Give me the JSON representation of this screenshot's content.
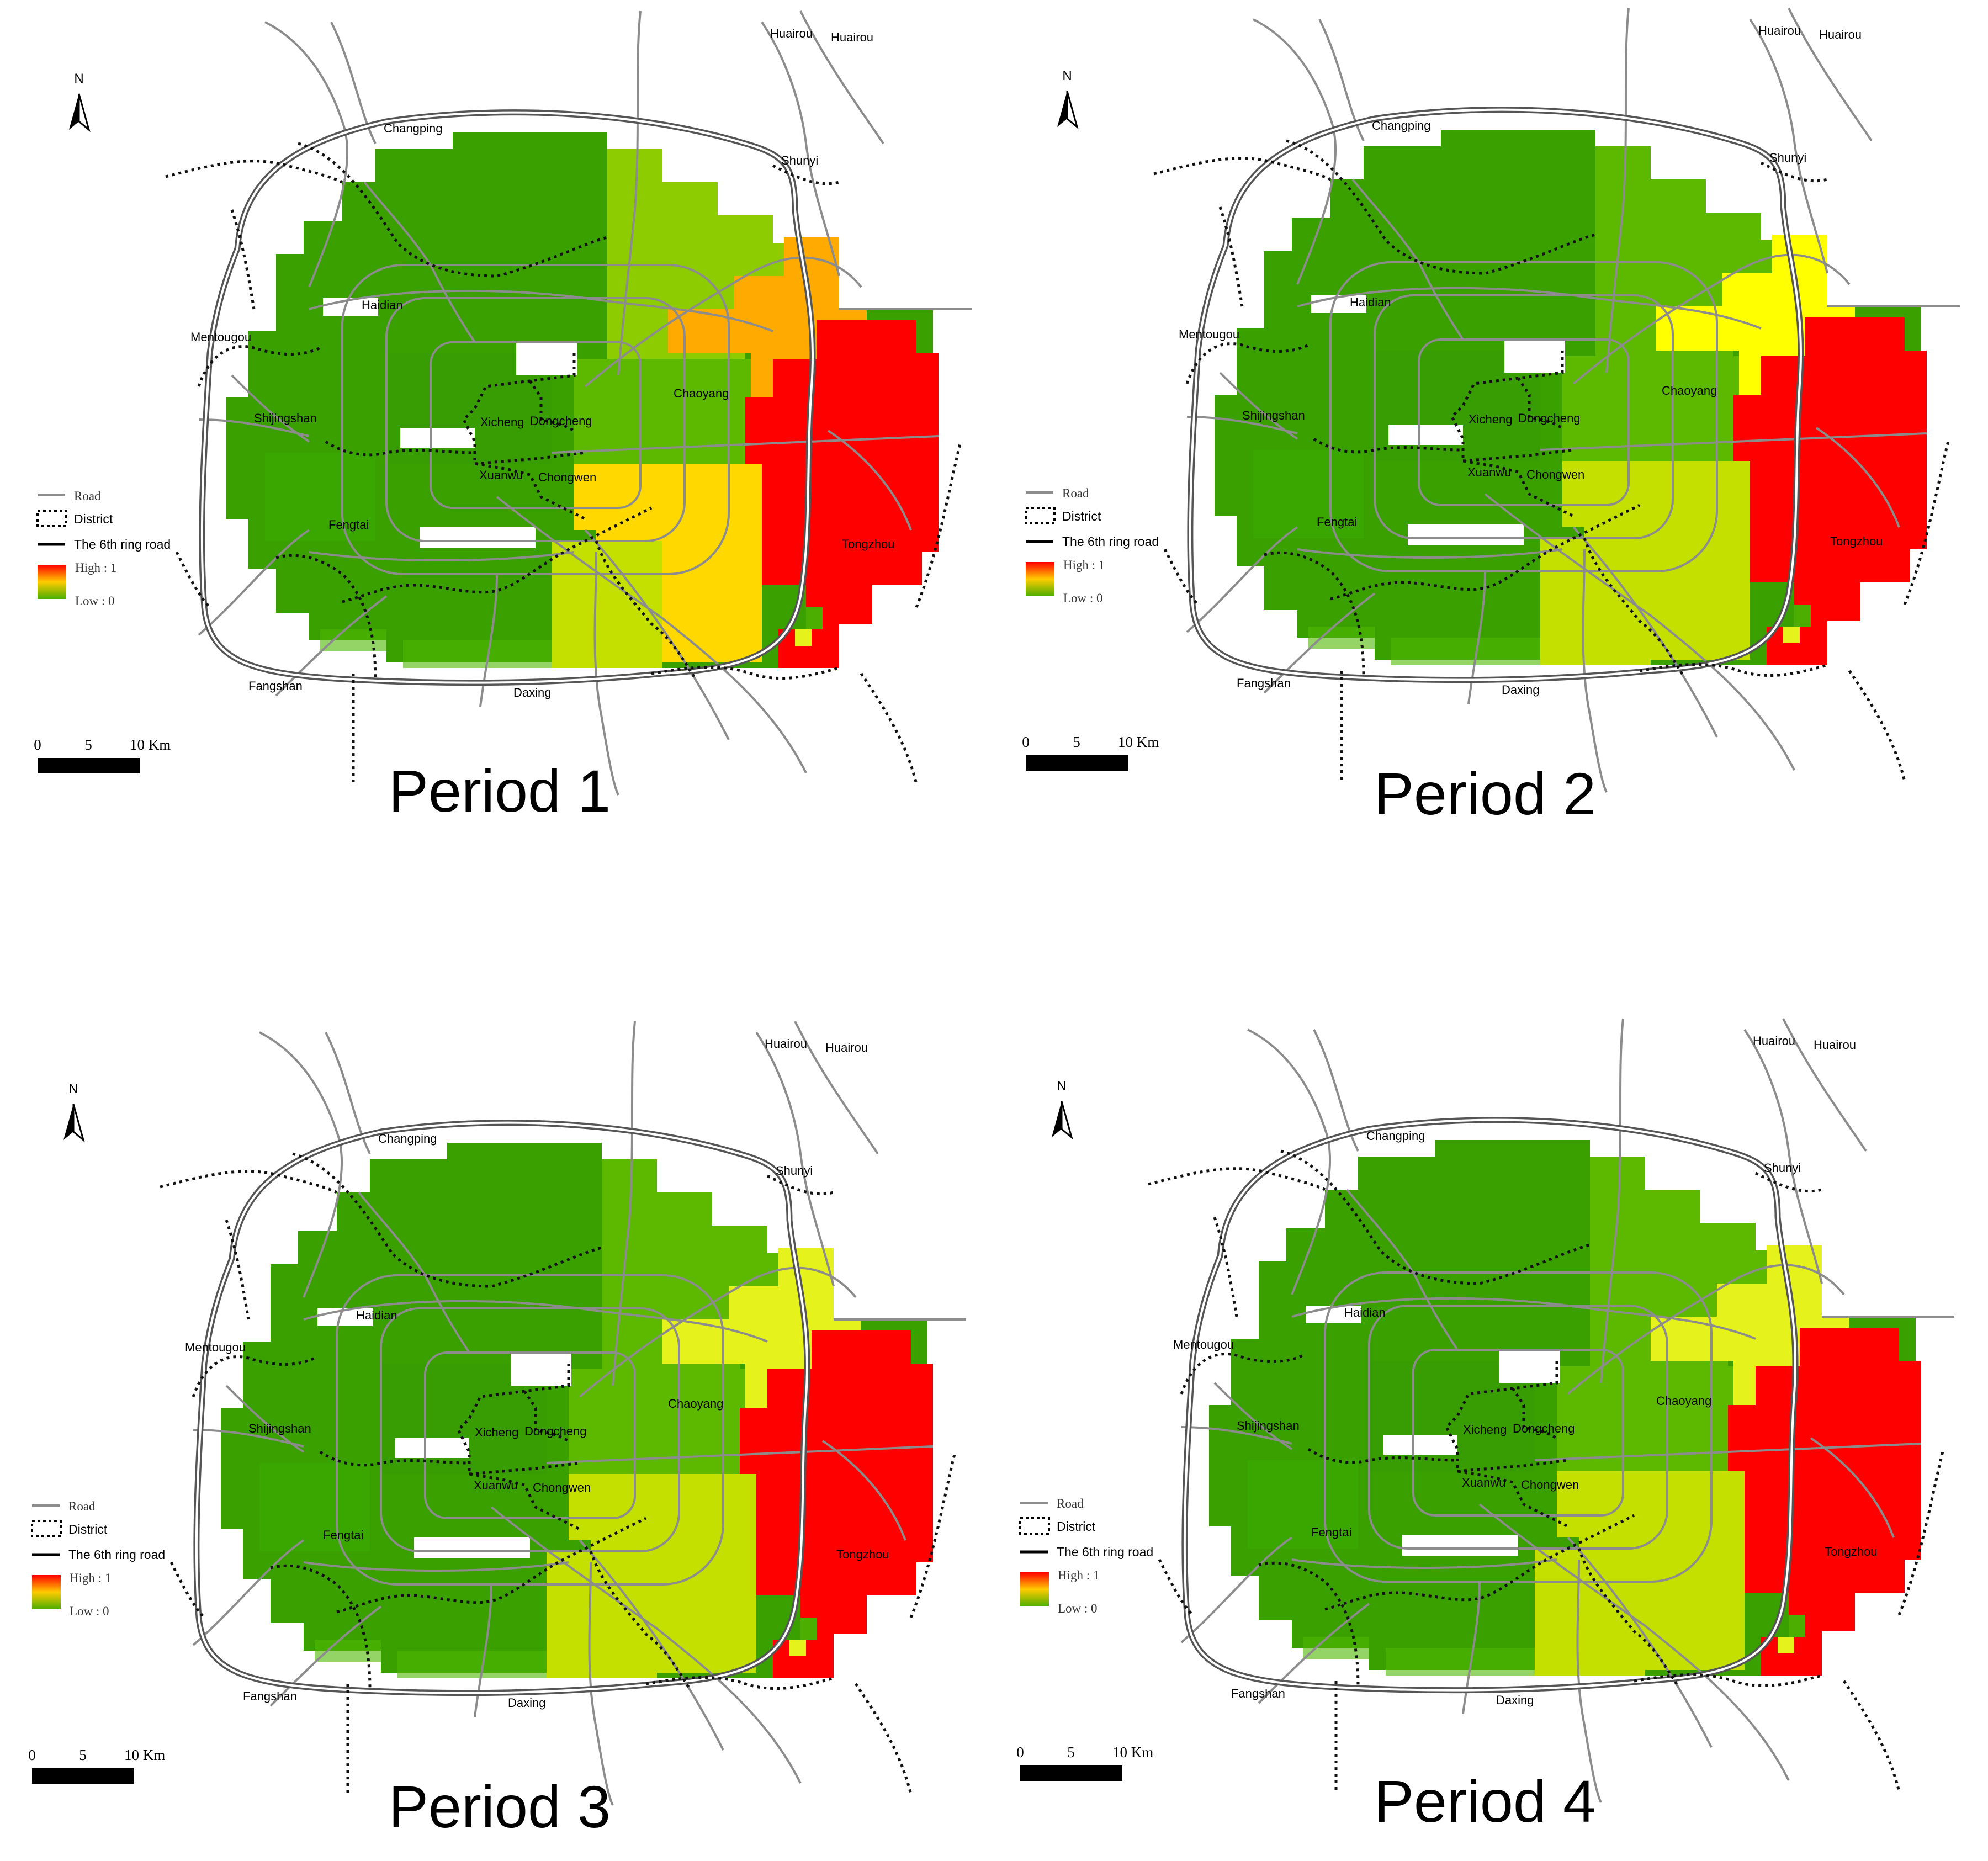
{
  "panels": [
    {
      "title": "Period 1",
      "hotspot": "orange",
      "southeast": "gold",
      "north_mid": "light",
      "labels": {
        "changping": "Changping",
        "shunyi": "Shunyi",
        "huairou_1": "Huairou",
        "huairou_2": "Huairou",
        "haidian": "Haidian",
        "mentougou": "Mentougou",
        "shijingshan": "Shijingshan",
        "xicheng": "Xicheng",
        "dongcheng": "Dongcheng",
        "chaoyang": "Chaoyang",
        "xuanwu": "Xuanwu",
        "chongwen": "Chongwen",
        "fengtai": "Fengtai",
        "tongzhou": "Tongzhou",
        "fangshan": "Fangshan",
        "daxing": "Daxing"
      },
      "legend": {
        "road": "Road",
        "district": "District",
        "ring": "The 6th ring road",
        "high": "High : 1",
        "low": "Low : 0"
      },
      "scale": {
        "t0": "0",
        "t5": "5",
        "t10": "10 Km"
      },
      "north": "N"
    },
    {
      "title": "Period 2",
      "hotspot": "yellow",
      "southeast": "lime",
      "north_mid": "mid",
      "labels": {
        "changping": "Changping",
        "shunyi": "Shunyi",
        "huairou_1": "Huairou",
        "huairou_2": "Huairou",
        "haidian": "Haidian",
        "mentougou": "Mentougou",
        "shijingshan": "Shijingshan",
        "xicheng": "Xicheng",
        "dongcheng": "Dongcheng",
        "chaoyang": "Chaoyang",
        "xuanwu": "Xuanwu",
        "chongwen": "Chongwen",
        "fengtai": "Fengtai",
        "tongzhou": "Tongzhou",
        "fangshan": "Fangshan",
        "daxing": "Daxing"
      },
      "legend": {
        "road": "Road",
        "district": "District",
        "ring": "The 6th ring road",
        "high": "High : 1",
        "low": "Low : 0"
      },
      "scale": {
        "t0": "0",
        "t5": "5",
        "t10": "10 Km"
      },
      "north": "N"
    },
    {
      "title": "Period 3",
      "hotspot": "paleyellow",
      "southeast": "lime",
      "north_mid": "mid",
      "labels": {
        "changping": "Changping",
        "shunyi": "Shunyi",
        "huairou_1": "Huairou",
        "huairou_2": "Huairou",
        "haidian": "Haidian",
        "mentougou": "Mentougou",
        "shijingshan": "Shijingshan",
        "xicheng": "Xicheng",
        "dongcheng": "Dongcheng",
        "chaoyang": "Chaoyang",
        "xuanwu": "Xuanwu",
        "chongwen": "Chongwen",
        "fengtai": "Fengtai",
        "tongzhou": "Tongzhou",
        "fangshan": "Fangshan",
        "daxing": "Daxing"
      },
      "legend": {
        "road": "Road",
        "district": "District",
        "ring": "The 6th ring road",
        "high": "High : 1",
        "low": "Low : 0"
      },
      "scale": {
        "t0": "0",
        "t5": "5",
        "t10": "10 Km"
      },
      "north": "N"
    },
    {
      "title": "Period 4",
      "hotspot": "paleyellow",
      "southeast": "lime",
      "north_mid": "mid",
      "labels": {
        "changping": "Changping",
        "shunyi": "Shunyi",
        "huairou_1": "Huairou",
        "huairou_2": "Huairou",
        "haidian": "Haidian",
        "mentougou": "Mentougou",
        "shijingshan": "Shijingshan",
        "xicheng": "Xicheng",
        "dongcheng": "Dongcheng",
        "chaoyang": "Chaoyang",
        "xuanwu": "Xuanwu",
        "chongwen": "Chongwen",
        "fengtai": "Fengtai",
        "tongzhou": "Tongzhou",
        "fangshan": "Fangshan",
        "daxing": "Daxing"
      },
      "legend": {
        "road": "Road",
        "district": "District",
        "ring": "The 6th ring road",
        "high": "High : 1",
        "low": "Low : 0"
      },
      "scale": {
        "t0": "0",
        "t5": "5",
        "t10": "10 Km"
      },
      "north": "N"
    }
  ],
  "colors": {
    "dark_green": "#3aa000",
    "green": "#4cae00",
    "mid_green": "#5db900",
    "light_green": "#8ccc00",
    "lime": "#c4e000",
    "pale_yellow": "#e6f21c",
    "yellow": "#ffff00",
    "gold": "#ffd800",
    "orange": "#ffaa00",
    "red": "#ff0000",
    "road": "#8c8c8c",
    "ring": "#333333"
  }
}
